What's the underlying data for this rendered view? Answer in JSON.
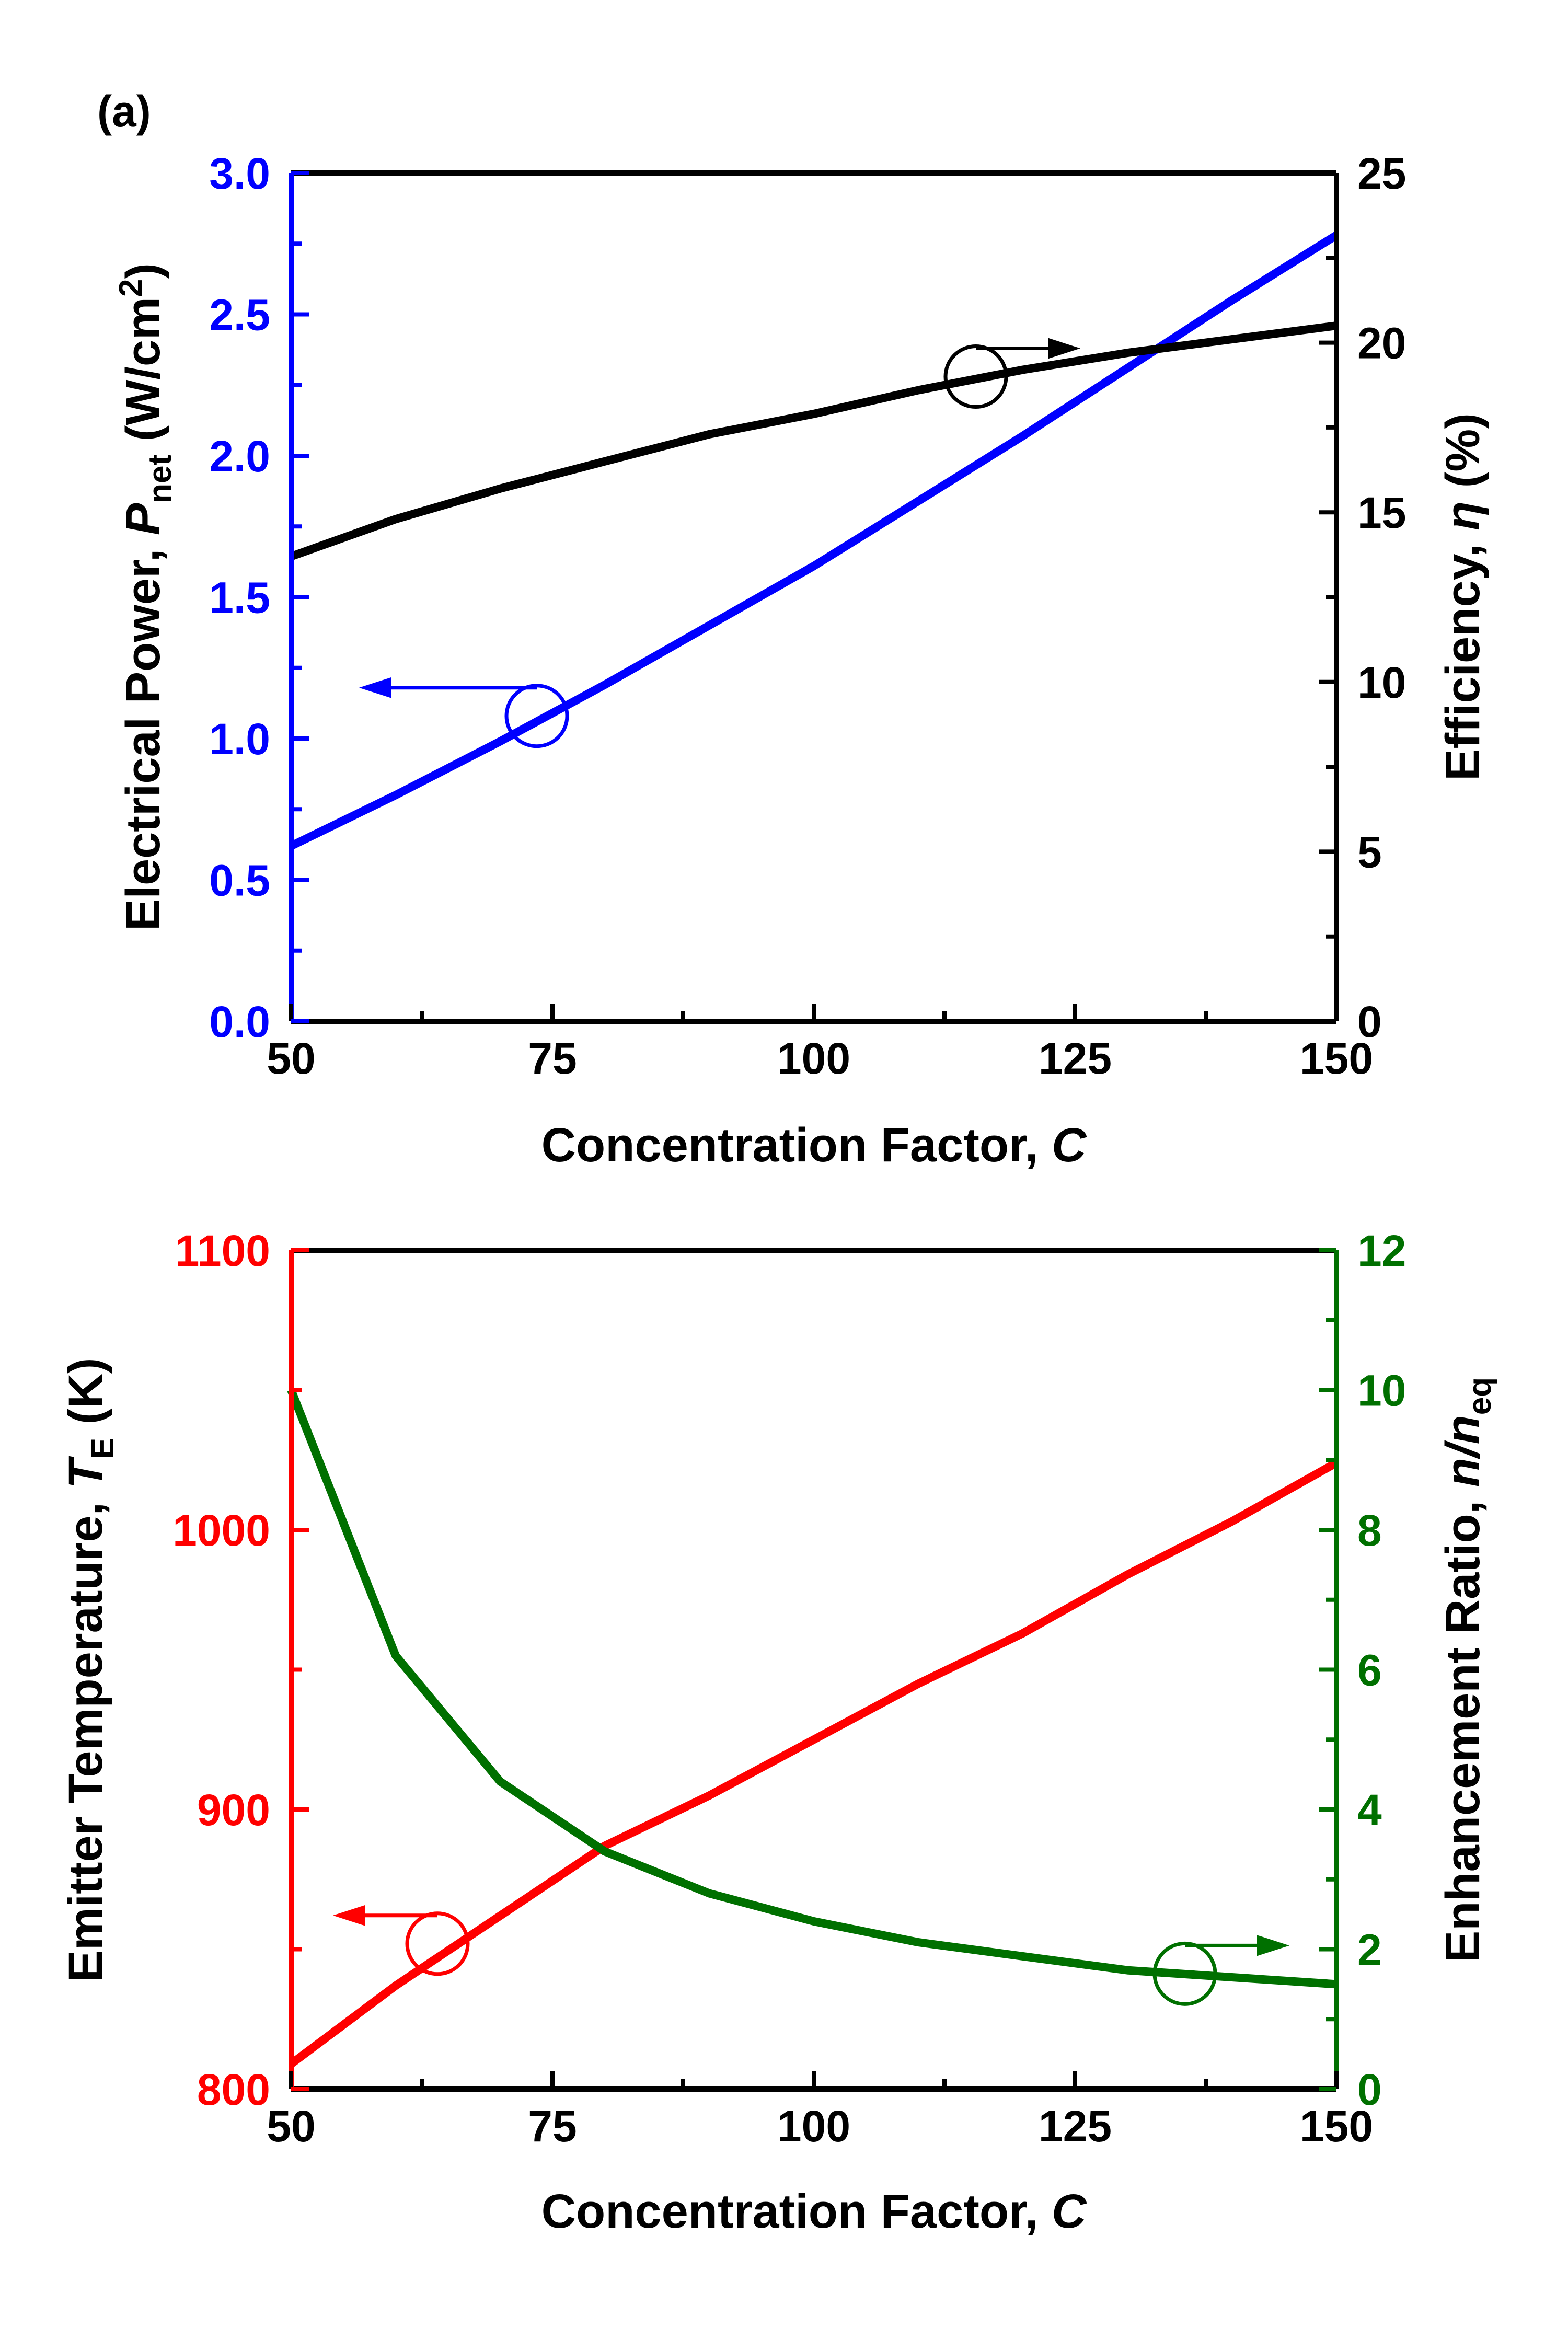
{
  "colors": {
    "black": "#000000",
    "blue": "#0000ff",
    "red": "#ff0000",
    "green": "#007000"
  },
  "chart_data": [
    {
      "panel_label": "(a)",
      "type": "line",
      "xlabel": "Concentration Factor, ",
      "xlabel_var": "C",
      "xlim": [
        50,
        150
      ],
      "x_ticks": [
        "50",
        "75",
        "100",
        "125",
        "150"
      ],
      "y_left": {
        "label_main": "Electrical Power, ",
        "label_var": "P",
        "label_sub": "net",
        "label_unit": " (W/cm",
        "label_sup": "2",
        "label_close": ")",
        "lim": [
          0,
          3
        ],
        "ticks": [
          "0.0",
          "0.5",
          "1.0",
          "1.5",
          "2.0",
          "2.5",
          "3.0"
        ],
        "color": "#0000ff"
      },
      "y_right": {
        "label_main": "Efficiency, ",
        "label_var": "η",
        "label_unit": " (%)",
        "lim": [
          0,
          25
        ],
        "ticks": [
          "0",
          "5",
          "10",
          "15",
          "20",
          "25"
        ],
        "color": "#000000"
      },
      "series": [
        {
          "name": "Electrical Power",
          "axis": "left",
          "color": "#0000ff",
          "x": [
            50,
            60,
            70,
            80,
            90,
            100,
            110,
            120,
            130,
            140,
            150
          ],
          "values": [
            0.62,
            0.8,
            0.99,
            1.19,
            1.4,
            1.61,
            1.84,
            2.07,
            2.31,
            2.55,
            2.78
          ]
        },
        {
          "name": "Efficiency",
          "axis": "right",
          "color": "#000000",
          "x": [
            50,
            60,
            70,
            80,
            90,
            100,
            110,
            120,
            130,
            140,
            150
          ],
          "values": [
            13.7,
            14.8,
            15.7,
            16.5,
            17.3,
            17.9,
            18.6,
            19.2,
            19.7,
            20.1,
            20.5
          ]
        }
      ],
      "markers": [
        {
          "series": "Electrical Power",
          "x": 73.5,
          "y": 1.08,
          "axis": "left",
          "arrow": "left",
          "arrow_to_x": 56.5,
          "color": "#0000ff"
        },
        {
          "series": "Efficiency",
          "x": 115.5,
          "y": 19.0,
          "axis": "right",
          "arrow": "right",
          "arrow_to_x": 125.5,
          "color": "#000000"
        }
      ]
    },
    {
      "type": "line",
      "xlabel": "Concentration Factor, ",
      "xlabel_var": "C",
      "xlim": [
        50,
        150
      ],
      "x_ticks": [
        "50",
        "75",
        "100",
        "125",
        "150"
      ],
      "y_left": {
        "label_main": "Emitter Temperature, ",
        "label_var": "T",
        "label_sub": "E",
        "label_unit": " (K)",
        "lim": [
          800,
          1100
        ],
        "ticks": [
          "800",
          "900",
          "1000",
          "1100"
        ],
        "color": "#ff0000"
      },
      "y_right": {
        "label_main": "Enhancement Ratio, ",
        "label_var": "n/n",
        "label_sub": "eq",
        "lim": [
          0,
          12
        ],
        "ticks": [
          "0",
          "2",
          "4",
          "6",
          "8",
          "10",
          "12"
        ],
        "color": "#007000"
      },
      "series": [
        {
          "name": "Emitter Temperature",
          "axis": "left",
          "color": "#ff0000",
          "x": [
            50,
            60,
            70,
            80,
            90,
            100,
            110,
            120,
            130,
            140,
            150
          ],
          "values": [
            809,
            837,
            862,
            887,
            905,
            925,
            945,
            963,
            984,
            1003,
            1024
          ]
        },
        {
          "name": "Enhancement Ratio",
          "axis": "right",
          "color": "#007000",
          "x": [
            50,
            60,
            70,
            80,
            90,
            100,
            110,
            120,
            130,
            140,
            150
          ],
          "values": [
            10.0,
            6.2,
            4.4,
            3.4,
            2.8,
            2.4,
            2.1,
            1.9,
            1.7,
            1.6,
            1.5
          ]
        }
      ],
      "markers": [
        {
          "series": "Emitter Temperature",
          "x": 64,
          "y": 852,
          "axis": "left",
          "arrow": "left",
          "arrow_to_x": 54,
          "color": "#ff0000"
        },
        {
          "series": "Enhancement Ratio",
          "x": 135.5,
          "y": 1.65,
          "axis": "right",
          "arrow": "right",
          "arrow_to_x": 145.5,
          "color": "#007000"
        }
      ]
    }
  ]
}
